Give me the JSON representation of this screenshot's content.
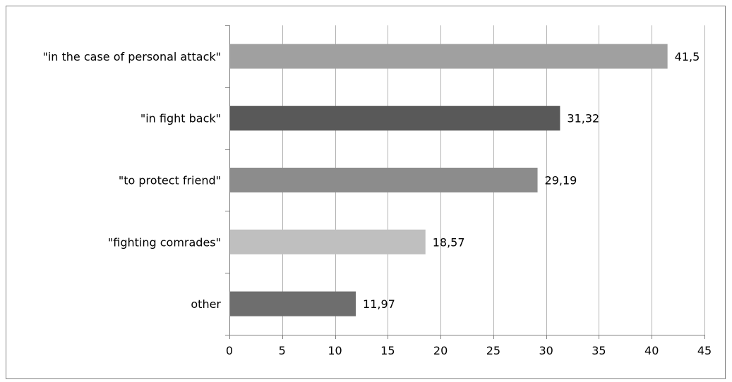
{
  "chart_data": {
    "type": "bar",
    "orientation": "horizontal",
    "categories": [
      "\"in the case of personal attack\"",
      "\"in fight back\"",
      "\"to protect friend\"",
      "\"fighting comrades\"",
      "other"
    ],
    "values": [
      41.5,
      31.32,
      29.19,
      18.57,
      11.97
    ],
    "data_labels": [
      "41,5",
      "31,32",
      "29,19",
      "18,57",
      "11,97"
    ],
    "bar_colors": [
      "#a0a0a0",
      "#595959",
      "#8c8c8c",
      "#bfbfbf",
      "#6e6e6e"
    ],
    "xlim": [
      0,
      45
    ],
    "x_ticks": [
      0,
      5,
      10,
      15,
      20,
      25,
      30,
      35,
      40,
      45
    ],
    "x_tick_labels": [
      "0",
      "5",
      "10",
      "15",
      "20",
      "25",
      "30",
      "35",
      "40",
      "45"
    ],
    "grid": "vertical",
    "gridline_color": "#b3b3b3",
    "legend": "none",
    "title": "",
    "xlabel": "",
    "ylabel": ""
  }
}
